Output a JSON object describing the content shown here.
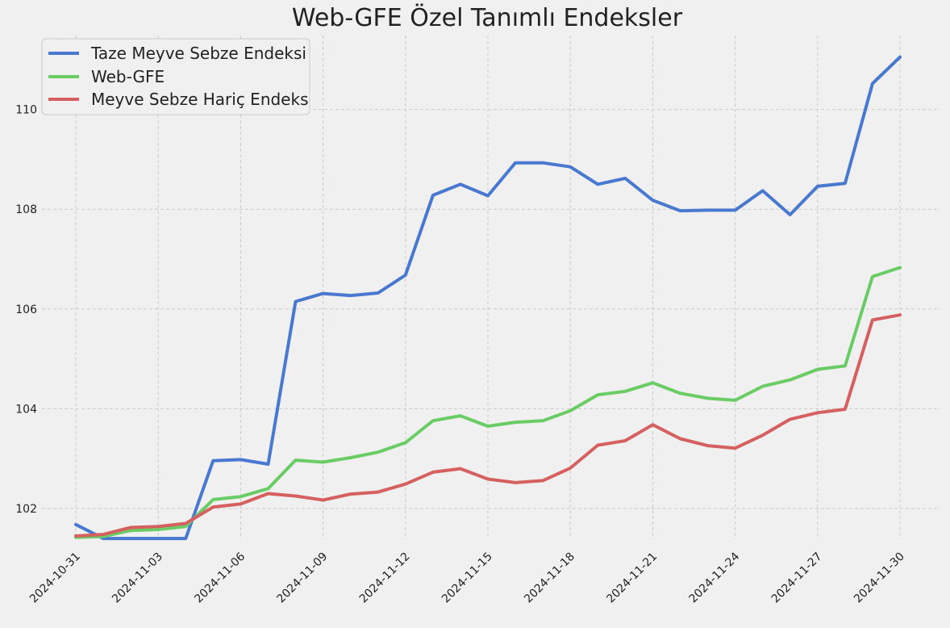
{
  "chart_data": {
    "type": "line",
    "title": "Web-GFE Özel Tanımlı Endeksler",
    "xlabel": "",
    "ylabel": "",
    "grid": true,
    "legend_position": "top-left",
    "ylim": [
      101.0,
      111.5
    ],
    "y_ticks": [
      102,
      104,
      106,
      108,
      110
    ],
    "x_tick_labels": [
      "2024-10-31",
      "2024-11-03",
      "2024-11-06",
      "2024-11-09",
      "2024-11-12",
      "2024-11-15",
      "2024-11-18",
      "2024-11-21",
      "2024-11-24",
      "2024-11-27",
      "2024-11-30"
    ],
    "x": [
      "2024-10-31",
      "2024-11-01",
      "2024-11-02",
      "2024-11-03",
      "2024-11-04",
      "2024-11-05",
      "2024-11-06",
      "2024-11-07",
      "2024-11-08",
      "2024-11-09",
      "2024-11-10",
      "2024-11-11",
      "2024-11-12",
      "2024-11-13",
      "2024-11-14",
      "2024-11-15",
      "2024-11-16",
      "2024-11-17",
      "2024-11-18",
      "2024-11-19",
      "2024-11-20",
      "2024-11-21",
      "2024-11-22",
      "2024-11-23",
      "2024-11-24",
      "2024-11-25",
      "2024-11-26",
      "2024-11-27",
      "2024-11-28",
      "2024-11-29",
      "2024-11-30"
    ],
    "series": [
      {
        "name": "Taze Meyve Sebze Endeksi",
        "color": "#4878cf",
        "values": [
          101.68,
          101.4,
          101.4,
          101.4,
          101.4,
          102.96,
          102.98,
          102.89,
          106.15,
          106.31,
          106.27,
          106.32,
          106.68,
          108.28,
          108.5,
          108.27,
          108.93,
          108.93,
          108.85,
          108.5,
          108.62,
          108.18,
          107.97,
          107.98,
          107.98,
          108.37,
          107.89,
          108.46,
          108.52,
          110.52,
          111.05
        ]
      },
      {
        "name": "Web-GFE",
        "color": "#6acc65",
        "values": [
          101.42,
          101.44,
          101.56,
          101.58,
          101.64,
          102.18,
          102.24,
          102.4,
          102.97,
          102.93,
          103.02,
          103.13,
          103.32,
          103.76,
          103.86,
          103.65,
          103.73,
          103.76,
          103.96,
          104.28,
          104.35,
          104.52,
          104.31,
          104.21,
          104.17,
          104.45,
          104.58,
          104.79,
          104.86,
          106.65,
          106.83
        ]
      },
      {
        "name": "Meyve Sebze Hariç Endeks",
        "color": "#d65f5f",
        "values": [
          101.45,
          101.48,
          101.62,
          101.64,
          101.7,
          102.03,
          102.09,
          102.3,
          102.25,
          102.17,
          102.29,
          102.33,
          102.49,
          102.73,
          102.8,
          102.59,
          102.52,
          102.56,
          102.81,
          103.27,
          103.36,
          103.68,
          103.4,
          103.26,
          103.21,
          103.47,
          103.79,
          103.92,
          103.99,
          105.78,
          105.88
        ]
      }
    ]
  }
}
